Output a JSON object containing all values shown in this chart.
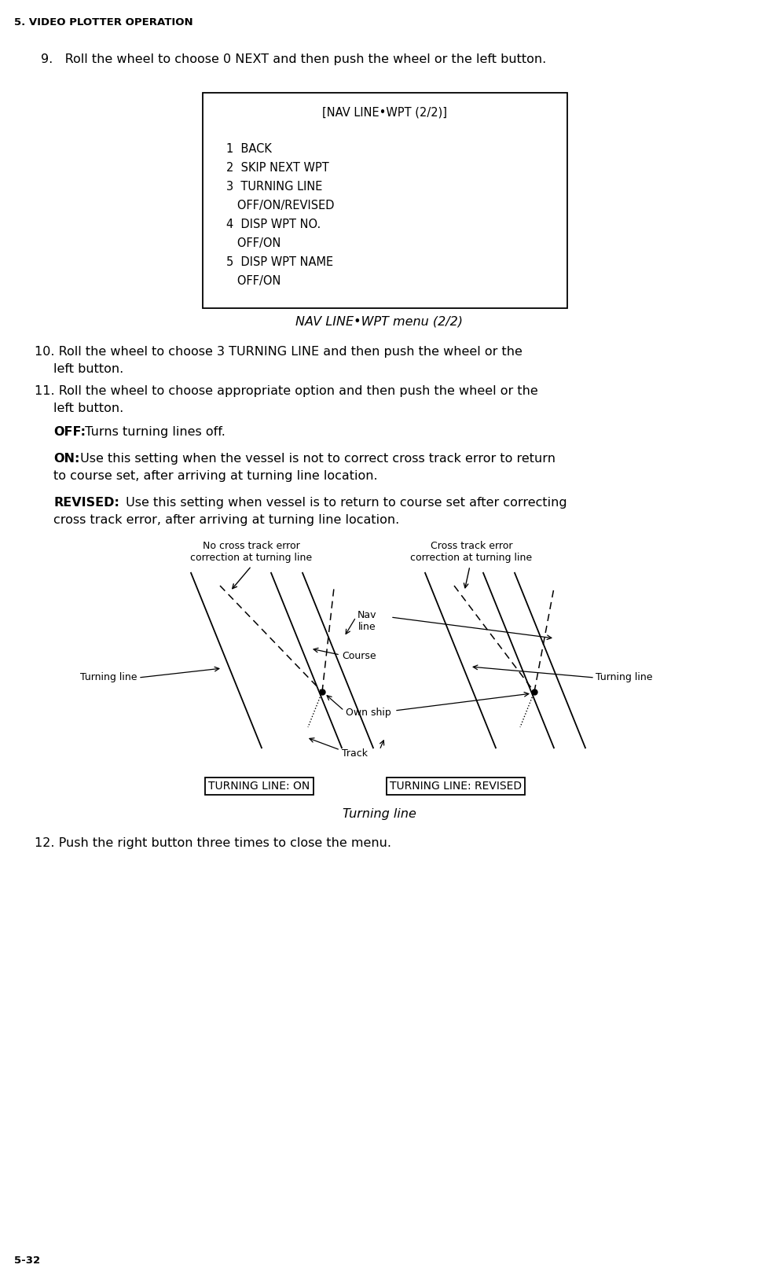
{
  "bg_color": "#ffffff",
  "text_color": "#000000",
  "page_header": "5. VIDEO PLOTTER OPERATION",
  "page_footer": "5-32",
  "step9_text": "9.   Roll the wheel to choose 0 NEXT and then push the wheel or the left button.",
  "menu_title": "[NAV LINE•WPT (2/2)]",
  "menu_items": [
    "1  BACK",
    "2  SKIP NEXT WPT",
    "3  TURNING LINE",
    "   OFF/ON/REVISED",
    "4  DISP WPT NO.",
    "   OFF/ON",
    "5  DISP WPT NAME",
    "   OFF/ON"
  ],
  "caption_italic": "NAV LINE•WPT menu (2/2)",
  "step10_line1": "10. Roll the wheel to choose 3 TURNING LINE and then push the wheel or the",
  "step10_line2": "left button.",
  "step11_line1": "11. Roll the wheel to choose appropriate option and then push the wheel or the",
  "step11_line2": "left button.",
  "off_bold": "OFF:",
  "off_rest": " Turns turning lines off.",
  "on_bold": "ON:",
  "on_rest_line1": " Use this setting when the vessel is not to correct cross track error to return",
  "on_rest_line2": "to course set, after arriving at turning line location.",
  "revised_bold": "REVISED:",
  "revised_rest_line1": " Use this setting when vessel is to return to course set after correcting",
  "revised_rest_line2": "cross track error, after arriving at turning line location.",
  "label_no_cross": "No cross track error\ncorrection at turning line",
  "label_cross": "Cross track error\ncorrection at turning line",
  "label_nav_line": "Nav\nline",
  "label_course": "Course",
  "label_turning_line_left": "Turning line",
  "label_turning_line_right": "Turning line",
  "label_own_ship": "Own ship",
  "label_track": "Track",
  "box_label_left": "TURNING LINE: ON",
  "box_label_right": "TURNING LINE: REVISED",
  "caption_turning_line": "Turning line",
  "step12_text": "12. Push the right button three times to close the menu."
}
